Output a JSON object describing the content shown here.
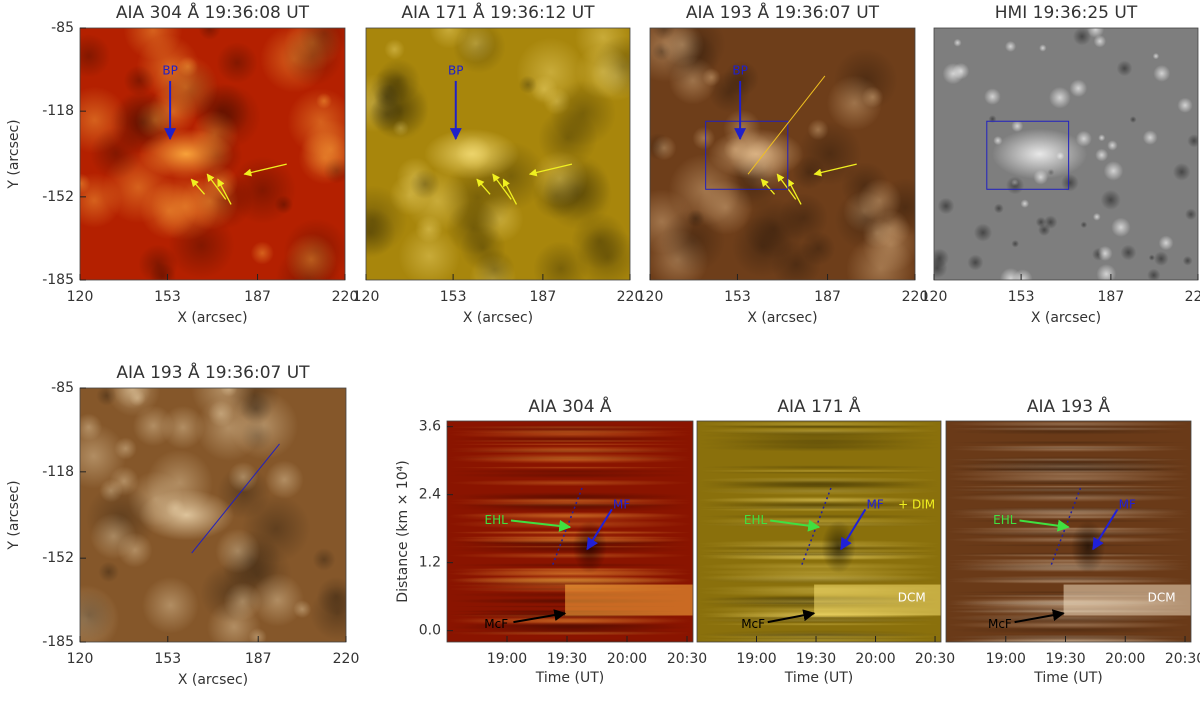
{
  "chart_data": [
    {
      "type": "image",
      "title": "AIA 304 Å 19:36:08 UT",
      "xlabel": "X (arcsec)",
      "ylabel": "Y (arcsec)",
      "xlim": [
        120,
        220
      ],
      "xticks": [
        120,
        153,
        187,
        220
      ],
      "ylim": [
        -185,
        -85
      ],
      "yticks": [
        -85,
        -118,
        -152,
        -185
      ],
      "color": "#b42000",
      "highlight": "#ffb040",
      "annotations": [
        "BP"
      ]
    },
    {
      "type": "image",
      "title": "AIA 171 Å 19:36:12 UT",
      "xlabel": "X (arcsec)",
      "xlim": [
        120,
        220
      ],
      "xticks": [
        120,
        153,
        187,
        220
      ],
      "ylim": [
        -185,
        -85
      ],
      "color": "#a8860c",
      "highlight": "#f0d870",
      "annotations": [
        "BP"
      ]
    },
    {
      "type": "image",
      "title": "AIA 193 Å 19:36:07 UT",
      "xlabel": "X (arcsec)",
      "xlim": [
        120,
        220
      ],
      "xticks": [
        120,
        153,
        187,
        220
      ],
      "ylim": [
        -185,
        -85
      ],
      "color": "#6e3e1a",
      "highlight": "#e0b888",
      "annotations": [
        "BP"
      ]
    },
    {
      "type": "image",
      "title": "HMI 19:36:25 UT",
      "xlabel": "X (arcsec)",
      "xlim": [
        120,
        220
      ],
      "xticks": [
        120,
        153,
        187,
        220
      ],
      "ylim": [
        -185,
        -85
      ],
      "color": "#7e7e7e",
      "highlight": "#f4f4f4",
      "annotations": []
    },
    {
      "type": "image",
      "title": "AIA 193 Å 19:36:07 UT",
      "xlabel": "X (arcsec)",
      "ylabel": "Y (arcsec)",
      "xlim": [
        120,
        220
      ],
      "xticks": [
        120,
        153,
        187,
        220
      ],
      "ylim": [
        -185,
        -85
      ],
      "yticks": [
        -85,
        -118,
        -152,
        -185
      ],
      "color": "#85572a",
      "highlight": "#e8d0a8",
      "annotations": []
    },
    {
      "type": "time-distance",
      "title": "AIA 304 Å",
      "xlabel": "Time (UT)",
      "ylabel": "Distance (km × 10⁴)",
      "xlim": [
        1110,
        1233
      ],
      "xticks": [
        {
          "value": 1140,
          "label": "19:00"
        },
        {
          "value": 1170,
          "label": "19:30"
        },
        {
          "value": 1200,
          "label": "20:00"
        },
        {
          "value": 1230,
          "label": "20:30"
        }
      ],
      "ylim": [
        -0.2,
        3.7
      ],
      "yticks": [
        {
          "value": 0,
          "label": "0.0"
        },
        1.2,
        2.4,
        3.6
      ],
      "color": "#8a1400",
      "highlight": "#ffb040",
      "annotations": [
        "EHL",
        "MF",
        "McF"
      ]
    },
    {
      "type": "time-distance",
      "title": "AIA 171 Å",
      "xlabel": "Time (UT)",
      "xlim": [
        1110,
        1233
      ],
      "xticks": [
        {
          "value": 1140,
          "label": "19:00"
        },
        {
          "value": 1170,
          "label": "19:30"
        },
        {
          "value": 1200,
          "label": "20:00"
        },
        {
          "value": 1230,
          "label": "20:30"
        }
      ],
      "ylim": [
        -0.2,
        3.7
      ],
      "color": "#8a700c",
      "highlight": "#f8e070",
      "annotations": [
        "EHL",
        "MF",
        "+ DIM",
        "McF",
        "DCM"
      ]
    },
    {
      "type": "time-distance",
      "title": "AIA 193 Å",
      "xlabel": "Time (UT)",
      "xlim": [
        1110,
        1233
      ],
      "xticks": [
        {
          "value": 1140,
          "label": "19:00"
        },
        {
          "value": 1170,
          "label": "19:30"
        },
        {
          "value": 1200,
          "label": "20:00"
        },
        {
          "value": 1230,
          "label": "20:30"
        }
      ],
      "ylim": [
        -0.2,
        3.7
      ],
      "color": "#6a3a18",
      "highlight": "#f0dcc0",
      "annotations": [
        "EHL",
        "MF",
        "McF",
        "DCM"
      ]
    }
  ]
}
